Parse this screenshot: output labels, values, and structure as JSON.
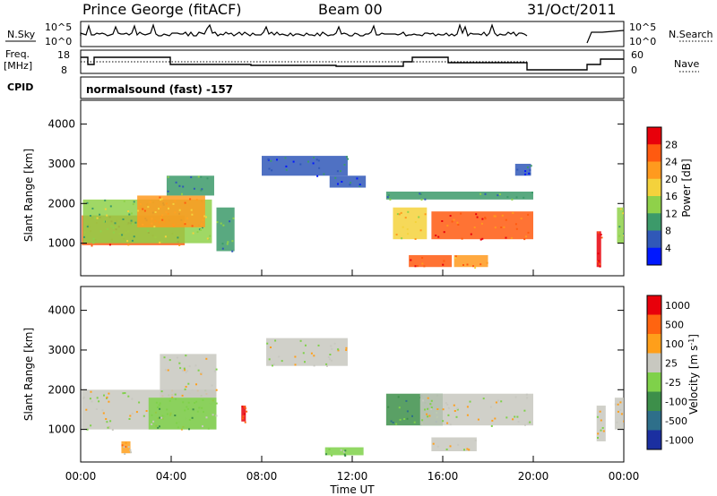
{
  "header": {
    "station": "Prince George (fitACF)",
    "beam": "Beam 00",
    "date": "31/Oct/2011"
  },
  "strip_labels": {
    "nsky": "N.Sky",
    "freq": "Freq.",
    "freq_unit": "[MHz]",
    "cpid": "CPID",
    "nsearch": "N.Search",
    "nave": "Nave"
  },
  "strip_ticks": {
    "nsky_top": "10^5",
    "nsky_bottom": "10^0",
    "freq_top": "18",
    "freq_bottom": "8",
    "nsearch_top": "10^5",
    "nsearch_bottom": "10^0",
    "nave_top": "60",
    "nave_bottom": "0"
  },
  "cpid_text": "normalsound (fast) -157",
  "chart_data": [
    {
      "type": "heatmap",
      "title": "",
      "xlabel": "Time UT",
      "ylabel": "Slant Range [km]",
      "x_ticks": [
        "00:00",
        "04:00",
        "08:00",
        "12:00",
        "16:00",
        "20:00",
        "00:00"
      ],
      "y_ticks": [
        "1000",
        "2000",
        "3000",
        "4000"
      ],
      "xlim": [
        0,
        24
      ],
      "ylim": [
        180,
        4600
      ],
      "colorbar": {
        "label": "Power [dB]",
        "ticks": [
          "4",
          "8",
          "12",
          "16",
          "20",
          "24",
          "28"
        ],
        "colors": [
          "#0018ff",
          "#3058b8",
          "#3c9a6a",
          "#8fd14a",
          "#f4d23c",
          "#ff9a1e",
          "#ff5a10",
          "#e8000b"
        ]
      },
      "blobs": [
        {
          "t0": 0.05,
          "t1": 4.6,
          "r0": 950,
          "r1": 1700,
          "level": 6
        },
        {
          "t0": 0.1,
          "t1": 5.8,
          "r0": 1000,
          "r1": 2100,
          "level": 3
        },
        {
          "t0": 2.5,
          "t1": 5.5,
          "r0": 1400,
          "r1": 2200,
          "level": 5
        },
        {
          "t0": 3.8,
          "t1": 5.9,
          "r0": 2200,
          "r1": 2700,
          "level": 2
        },
        {
          "t0": 6.0,
          "t1": 6.8,
          "r0": 800,
          "r1": 1900,
          "level": 2
        },
        {
          "t0": 8.0,
          "t1": 11.8,
          "r0": 2700,
          "r1": 3200,
          "level": 1
        },
        {
          "t0": 11.0,
          "t1": 12.6,
          "r0": 2400,
          "r1": 2700,
          "level": 1
        },
        {
          "t0": 13.8,
          "t1": 15.3,
          "r0": 1100,
          "r1": 1900,
          "level": 4
        },
        {
          "t0": 14.5,
          "t1": 16.4,
          "r0": 400,
          "r1": 700,
          "level": 6
        },
        {
          "t0": 15.5,
          "t1": 20.0,
          "r0": 1100,
          "r1": 1800,
          "level": 6
        },
        {
          "t0": 13.5,
          "t1": 20.0,
          "r0": 2100,
          "r1": 2300,
          "level": 2
        },
        {
          "t0": 16.5,
          "t1": 18.0,
          "r0": 400,
          "r1": 700,
          "level": 5
        },
        {
          "t0": 19.2,
          "t1": 19.9,
          "r0": 2700,
          "r1": 3000,
          "level": 1
        },
        {
          "t0": 22.8,
          "t1": 23.0,
          "r0": 400,
          "r1": 1300,
          "level": 7
        },
        {
          "t0": 23.7,
          "t1": 24.0,
          "r0": 1000,
          "r1": 1900,
          "level": 3
        }
      ]
    },
    {
      "type": "heatmap",
      "title": "",
      "xlabel": "Time UT",
      "ylabel": "Slant Range [km]",
      "x_ticks": [
        "00:00",
        "04:00",
        "08:00",
        "12:00",
        "16:00",
        "20:00",
        "00:00"
      ],
      "y_ticks": [
        "1000",
        "2000",
        "3000",
        "4000"
      ],
      "xlim": [
        0,
        24
      ],
      "ylim": [
        180,
        4600
      ],
      "colorbar": {
        "label": "Velocity [m s^-1]",
        "ticks": [
          "1000",
          "500",
          "100",
          "25",
          "-25",
          "-100",
          "-500",
          "-1000"
        ],
        "colors": [
          "#1b2fa0",
          "#2e6f8a",
          "#3d8f4a",
          "#7fd14a",
          "#c8c8c0",
          "#ff9f1a",
          "#ff6410",
          "#e8000b"
        ]
      },
      "blobs": [
        {
          "t0": 0.05,
          "t1": 6.0,
          "r0": 1000,
          "r1": 2000,
          "level": 4
        },
        {
          "t0": 3.5,
          "t1": 6.0,
          "r0": 1800,
          "r1": 2900,
          "level": 4
        },
        {
          "t0": 3.0,
          "t1": 6.0,
          "r0": 1000,
          "r1": 1800,
          "level": 3
        },
        {
          "t0": 8.2,
          "t1": 11.8,
          "r0": 2600,
          "r1": 3300,
          "level": 4
        },
        {
          "t0": 13.5,
          "t1": 16.0,
          "r0": 1100,
          "r1": 1900,
          "level": 2
        },
        {
          "t0": 15.0,
          "t1": 20.0,
          "r0": 1100,
          "r1": 1900,
          "level": 4
        },
        {
          "t0": 15.5,
          "t1": 17.5,
          "r0": 450,
          "r1": 800,
          "level": 4
        },
        {
          "t0": 10.8,
          "t1": 12.5,
          "r0": 350,
          "r1": 550,
          "level": 3
        },
        {
          "t0": 7.1,
          "t1": 7.3,
          "r0": 1200,
          "r1": 1600,
          "level": 7
        },
        {
          "t0": 1.8,
          "t1": 2.2,
          "r0": 400,
          "r1": 700,
          "level": 5
        },
        {
          "t0": 22.8,
          "t1": 23.2,
          "r0": 700,
          "r1": 1600,
          "level": 4
        },
        {
          "t0": 23.6,
          "t1": 24.0,
          "r0": 1000,
          "r1": 1800,
          "level": 4
        }
      ]
    }
  ]
}
